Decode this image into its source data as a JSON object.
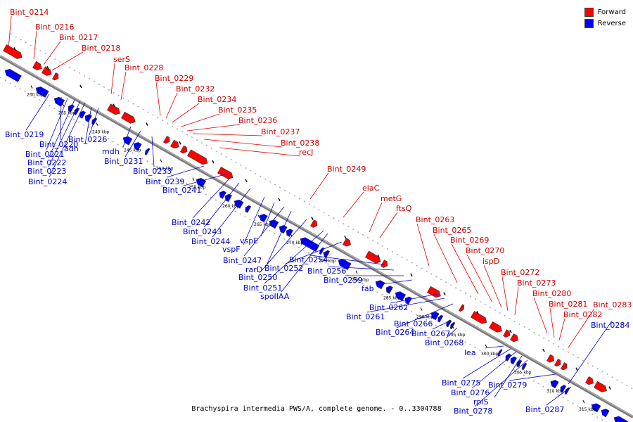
{
  "legend": {
    "forward_label": "Forward",
    "reverse_label": "Reverse",
    "forward_color": "#ff0000",
    "reverse_color": "#0000ff"
  },
  "footer": "Brachyspira intermedia PWS/A, complete genome. - 0..3304788",
  "scale_ticks": [
    "230 kbp",
    "235 kbp",
    "240 kbp",
    "245 kbp",
    "250 kbp",
    "255 kbp",
    "260 kbp",
    "265 kbp",
    "270 kbp",
    "275 kbp",
    "280 kbp",
    "285 kbp",
    "290 kbp",
    "295 kbp",
    "300 kbp",
    "305 kbp",
    "310 kbp",
    "315 kbp"
  ],
  "forward_labels": [
    "Bint_0214",
    "Bint_0216",
    "Bint_0217",
    "Bint_0218",
    "serS",
    "Bint_0228",
    "Bint_0229",
    "Bint_0232",
    "Bint_0234",
    "Bint_0235",
    "Bint_0236",
    "Bint_0237",
    "Bint_0238",
    "recJ",
    "Bint_0249",
    "elaC",
    "metG",
    "ftsQ",
    "Bint_0263",
    "Bint_0265",
    "Bint_0269",
    "Bint_0270",
    "ispD",
    "Bint_0272",
    "Bint_0273",
    "Bint_0280",
    "Bint_0281",
    "Bint_0282",
    "Bint_0283"
  ],
  "reverse_labels": [
    "Bint_0219",
    "Bint_0220",
    "Bint_0221",
    "Bint_0222",
    "Bint_0223",
    "Bint_0224",
    "adh",
    "Bint_0226",
    "mdh",
    "Bint_0231",
    "Bint_0233",
    "Bint_0239",
    "Bint_0241",
    "Bint_0242",
    "Bint_0243",
    "Bint_0244",
    "vspF",
    "vspE",
    "Bint_0247",
    "rarD",
    "Bint_0250",
    "Bint_0251",
    "spoIIAA",
    "Bint_0252",
    "Bint_0254",
    "Bint_0256",
    "Bint_0259",
    "fab",
    "Bint_0262",
    "Bint_0261",
    "Bint_0264",
    "Bint_0266",
    "Bint_0267",
    "Bint_0268",
    "lea",
    "Bint_0275",
    "Bint_0276",
    "rplS",
    "Bint_0278",
    "Bint_0279",
    "Bint_0284",
    "Bint_0287"
  ]
}
